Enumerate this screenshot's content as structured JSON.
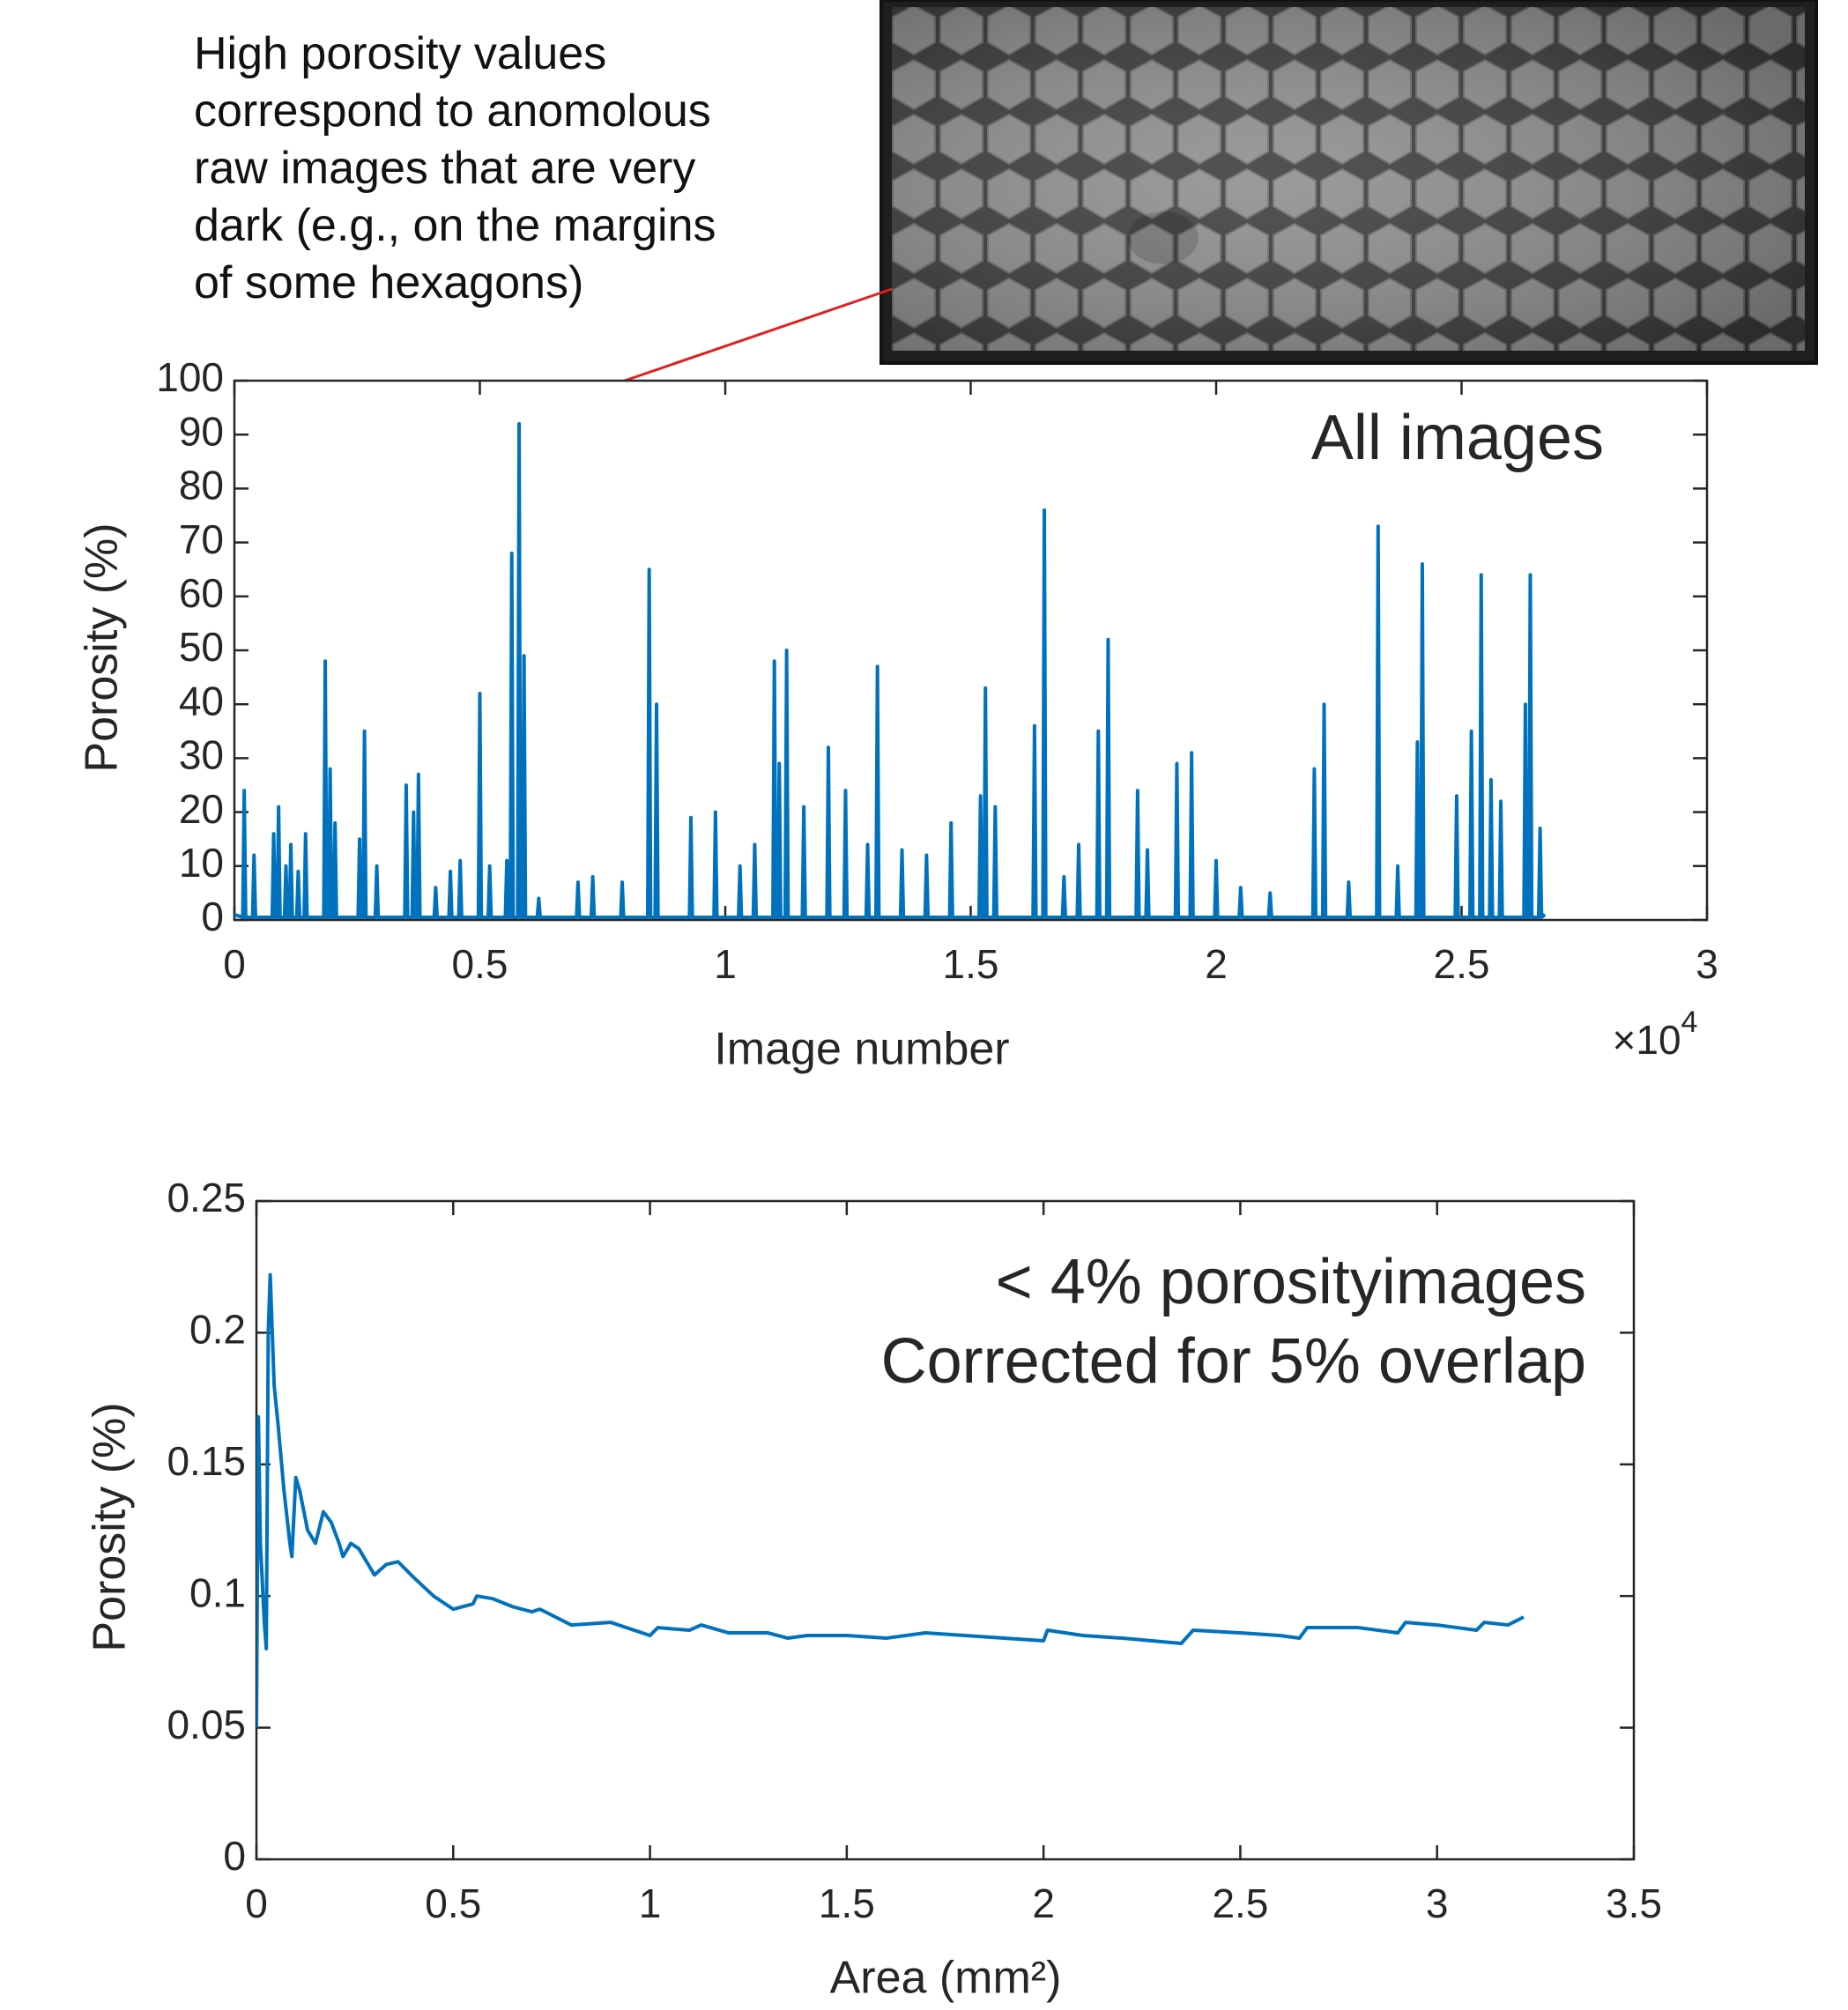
{
  "chart_data": [
    {
      "type": "line",
      "title": "All images",
      "xlabel": "Image number",
      "ylabel": "Porosity (%)",
      "annotation": [
        "High porosity values",
        "correspond to anomolous",
        "raw images that are very",
        "dark (e.g., on the margins",
        "of some hexagons)"
      ],
      "x_multiplier": {
        "base": "×10",
        "exponent": "4"
      },
      "color": "#0072bd",
      "xlim": [
        0,
        30000
      ],
      "xticks": [
        0,
        {
          "value": 5000,
          "label": "0.5"
        },
        {
          "value": 10000,
          "label": "1"
        },
        {
          "value": 15000,
          "label": "1.5"
        },
        {
          "value": 20000,
          "label": "2"
        },
        {
          "value": 25000,
          "label": "2.5"
        },
        {
          "value": 30000,
          "label": "3"
        }
      ],
      "ylim": [
        0,
        100
      ],
      "yticks": [
        0,
        10,
        20,
        30,
        40,
        50,
        60,
        70,
        80,
        90,
        100
      ],
      "x": [
        0,
        170,
        200,
        230,
        370,
        400,
        430,
        770,
        800,
        830,
        870,
        900,
        930,
        1020,
        1050,
        1080,
        1120,
        1150,
        1180,
        1270,
        1300,
        1330,
        1420,
        1450,
        1480,
        1820,
        1850,
        1880,
        1920,
        1950,
        1980,
        2020,
        2050,
        2080,
        2520,
        2550,
        2580,
        2620,
        2650,
        2680,
        2870,
        2900,
        2930,
        3470,
        3500,
        3530,
        3620,
        3650,
        3680,
        3720,
        3750,
        3780,
        4070,
        4100,
        4130,
        4370,
        4400,
        4430,
        4570,
        4600,
        4630,
        4970,
        5000,
        5030,
        5170,
        5200,
        5230,
        5520,
        5550,
        5580,
        5620,
        5650,
        5680,
        5770,
        5800,
        5830,
        5870,
        5900,
        5930,
        6170,
        6200,
        6230,
        6970,
        7000,
        7030,
        7270,
        7300,
        7330,
        7870,
        7900,
        7930,
        8420,
        8450,
        8480,
        8570,
        8600,
        8630,
        9270,
        9300,
        9330,
        9770,
        9800,
        9830,
        10270,
        10300,
        10330,
        10570,
        10600,
        10630,
        10970,
        11000,
        11030,
        11070,
        11100,
        11130,
        11220,
        11250,
        11280,
        11570,
        11600,
        11630,
        12070,
        12100,
        12130,
        12420,
        12450,
        12480,
        12870,
        12900,
        12930,
        13070,
        13100,
        13130,
        13570,
        13600,
        13630,
        14070,
        14100,
        14130,
        14570,
        14600,
        14630,
        15170,
        15200,
        15230,
        15270,
        15300,
        15330,
        15470,
        15500,
        15530,
        16270,
        16300,
        16330,
        16470,
        16500,
        16530,
        16870,
        16900,
        16930,
        17170,
        17200,
        17230,
        17570,
        17600,
        17630,
        17770,
        17800,
        17830,
        18370,
        18400,
        18430,
        18570,
        18600,
        18630,
        19170,
        19200,
        19230,
        19470,
        19500,
        19530,
        19970,
        20000,
        20030,
        20470,
        20500,
        20530,
        21070,
        21100,
        21130,
        21970,
        22000,
        22030,
        22170,
        22200,
        22230,
        22670,
        22700,
        22730,
        23270,
        23300,
        23330,
        23670,
        23700,
        23730,
        24070,
        24100,
        24130,
        24170,
        24200,
        24230,
        24870,
        24900,
        24930,
        25170,
        25200,
        25230,
        25370,
        25400,
        25430,
        25570,
        25600,
        25630,
        25770,
        25800,
        25830,
        26270,
        26300,
        26330,
        26370,
        26400,
        26430,
        26570,
        26600,
        26630,
        26700
      ],
      "values": [
        1,
        0.5,
        24,
        0.5,
        0.5,
        12,
        0.5,
        0.5,
        16,
        0.5,
        0.5,
        21,
        0.5,
        0.5,
        10,
        0.5,
        0.5,
        14,
        0.5,
        0.5,
        9,
        0.5,
        0.5,
        16,
        0.5,
        0.5,
        48,
        0.5,
        0.5,
        28,
        0.5,
        0.5,
        18,
        0.5,
        0.5,
        15,
        0.5,
        0.5,
        35,
        0.5,
        0.5,
        10,
        0.5,
        0.5,
        25,
        0.5,
        0.5,
        20,
        0.5,
        0.5,
        27,
        0.5,
        0.5,
        6,
        0.5,
        0.5,
        9,
        0.5,
        0.5,
        11,
        0.5,
        0.5,
        42,
        0.5,
        0.5,
        10,
        0.5,
        0.5,
        11,
        0.5,
        0.5,
        68,
        0.5,
        0.5,
        92,
        0.5,
        0.5,
        49,
        0.5,
        0.5,
        4,
        0.5,
        0.5,
        7,
        0.5,
        0.5,
        8,
        0.5,
        0.5,
        7,
        0.5,
        0.5,
        65,
        0.5,
        0.5,
        40,
        0.5,
        0.5,
        19,
        0.5,
        0.5,
        20,
        0.5,
        0.5,
        10,
        0.5,
        0.5,
        14,
        0.5,
        0.5,
        48,
        0.5,
        0.5,
        29,
        0.5,
        0.5,
        50,
        0.5,
        0.5,
        21,
        0.5,
        0.5,
        32,
        0.5,
        0.5,
        24,
        0.5,
        0.5,
        14,
        0.5,
        0.5,
        47,
        0.5,
        0.5,
        13,
        0.5,
        0.5,
        12,
        0.5,
        0.5,
        18,
        0.5,
        0.5,
        23,
        0.5,
        0.5,
        43,
        0.5,
        0.5,
        21,
        0.5,
        0.5,
        36,
        0.5,
        0.5,
        76,
        0.5,
        0.5,
        8,
        0.5,
        0.5,
        14,
        0.5,
        0.5,
        35,
        0.5,
        0.5,
        52,
        0.5,
        0.5,
        24,
        0.5,
        0.5,
        13,
        0.5,
        0.5,
        29,
        0.5,
        0.5,
        31,
        0.5,
        0.5,
        11,
        0.5,
        0.5,
        6,
        0.5,
        0.5,
        5,
        0.5,
        0.5,
        28,
        0.5,
        0.5,
        40,
        0.5,
        0.5,
        7,
        0.5,
        0.5,
        73,
        0.5,
        0.5,
        10,
        0.5,
        0.5,
        33,
        0.5,
        0.5,
        66,
        0.5,
        0.5,
        23,
        0.5,
        0.5,
        35,
        0.5,
        0.5,
        64,
        0.5,
        0.5,
        26,
        0.5,
        0.5,
        22,
        0.5,
        0.5,
        40,
        0.5,
        0.5,
        64,
        0.5,
        0.5,
        17,
        0.5,
        1
      ]
    },
    {
      "type": "line",
      "title": [
        "< 4% porosityimages",
        "Corrected for 5% overlap"
      ],
      "xlabel": "Area (mm²)",
      "ylabel": "Porosity (%)",
      "color": "#0072bd",
      "xlim": [
        0,
        3.5
      ],
      "xticks": [
        0,
        0.5,
        1,
        1.5,
        2,
        2.5,
        3,
        3.5
      ],
      "ylim": [
        0,
        0.25
      ],
      "yticks": [
        0,
        0.05,
        0.1,
        0.15,
        0.2,
        0.25
      ],
      "x": [
        0,
        0.005,
        0.01,
        0.02,
        0.025,
        0.03,
        0.035,
        0.045,
        0.055,
        0.07,
        0.085,
        0.09,
        0.1,
        0.11,
        0.13,
        0.15,
        0.17,
        0.19,
        0.21,
        0.22,
        0.24,
        0.26,
        0.3,
        0.33,
        0.36,
        0.4,
        0.45,
        0.5,
        0.55,
        0.56,
        0.6,
        0.65,
        0.7,
        0.72,
        0.8,
        0.9,
        1.0,
        1.02,
        1.1,
        1.13,
        1.2,
        1.3,
        1.35,
        1.4,
        1.5,
        1.6,
        1.7,
        1.8,
        1.9,
        2.0,
        2.01,
        2.1,
        2.2,
        2.35,
        2.38,
        2.5,
        2.6,
        2.65,
        2.67,
        2.8,
        2.9,
        2.92,
        3.0,
        3.1,
        3.12,
        3.18,
        3.22
      ],
      "values": [
        0.05,
        0.168,
        0.12,
        0.09,
        0.08,
        0.2,
        0.222,
        0.18,
        0.165,
        0.14,
        0.12,
        0.115,
        0.145,
        0.14,
        0.125,
        0.12,
        0.132,
        0.128,
        0.12,
        0.115,
        0.12,
        0.118,
        0.108,
        0.112,
        0.113,
        0.107,
        0.1,
        0.095,
        0.097,
        0.1,
        0.099,
        0.096,
        0.094,
        0.095,
        0.089,
        0.09,
        0.085,
        0.088,
        0.087,
        0.089,
        0.086,
        0.086,
        0.084,
        0.085,
        0.085,
        0.084,
        0.086,
        0.085,
        0.084,
        0.083,
        0.087,
        0.085,
        0.084,
        0.082,
        0.087,
        0.086,
        0.085,
        0.084,
        0.088,
        0.088,
        0.086,
        0.09,
        0.089,
        0.087,
        0.09,
        0.089,
        0.092
      ]
    }
  ]
}
